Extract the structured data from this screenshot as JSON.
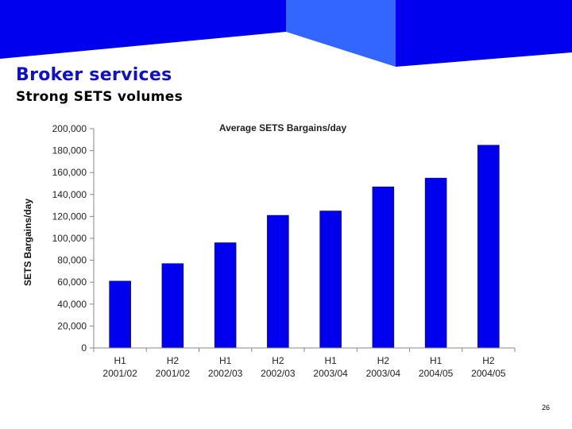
{
  "slide": {
    "heading": "Broker services",
    "subheading": "Strong SETS volumes",
    "page_number": "26"
  },
  "colors": {
    "banner_dark": "#0000ee",
    "banner_light": "#3366ff",
    "bar_fill": "#0000ee",
    "heading_text": "#1010cc"
  },
  "chart_data": {
    "type": "bar",
    "title": "Average SETS Bargains/day",
    "xlabel": "",
    "ylabel": "SETS Bargains/day",
    "categories": [
      [
        "H1",
        "2001/02"
      ],
      [
        "H2",
        "2001/02"
      ],
      [
        "H1",
        "2002/03"
      ],
      [
        "H2",
        "2002/03"
      ],
      [
        "H1",
        "2003/04"
      ],
      [
        "H2",
        "2003/04"
      ],
      [
        "H1",
        "2004/05"
      ],
      [
        "H2",
        "2004/05"
      ]
    ],
    "values": [
      61000,
      77000,
      96000,
      121000,
      125000,
      147000,
      155000,
      185000
    ],
    "ylim": [
      0,
      200000
    ],
    "yticks": [
      0,
      20000,
      40000,
      60000,
      80000,
      100000,
      120000,
      140000,
      160000,
      180000,
      200000
    ],
    "ytick_labels": [
      "0",
      "20,000",
      "40,000",
      "60,000",
      "80,000",
      "100,000",
      "120,000",
      "140,000",
      "160,000",
      "180,000",
      "200,000"
    ],
    "grid": false,
    "legend": "none"
  }
}
